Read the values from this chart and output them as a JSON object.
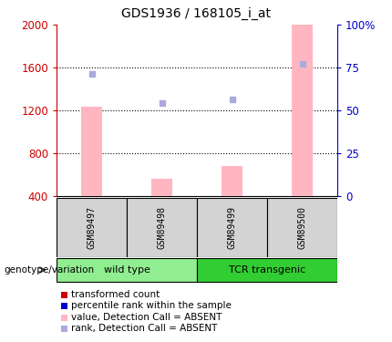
{
  "title": "GDS1936 / 168105_i_at",
  "samples": [
    "GSM89497",
    "GSM89498",
    "GSM89499",
    "GSM89500"
  ],
  "bar_values": [
    1230,
    560,
    680,
    2000
  ],
  "bar_color_absent": "#FFB6C1",
  "dot_values": [
    1540,
    1270,
    1300,
    1630
  ],
  "dot_color_absent": "#AAAADD",
  "ylim_left": [
    400,
    2000
  ],
  "ylim_right": [
    0,
    100
  ],
  "yticks_left": [
    400,
    800,
    1200,
    1600,
    2000
  ],
  "yticks_right": [
    0,
    25,
    50,
    75,
    100
  ],
  "ytick_labels_right": [
    "0",
    "25",
    "50",
    "75",
    "100%"
  ],
  "left_axis_color": "#CC0000",
  "right_axis_color": "#0000CC",
  "sample_box_color": "#D3D3D3",
  "group_box_color_wt": "#90EE90",
  "group_box_color_tcr": "#32CD32",
  "legend_items": [
    {
      "label": "transformed count",
      "color": "#CC0000"
    },
    {
      "label": "percentile rank within the sample",
      "color": "#0000CC"
    },
    {
      "label": "value, Detection Call = ABSENT",
      "color": "#FFB6C1"
    },
    {
      "label": "rank, Detection Call = ABSENT",
      "color": "#AAAADD"
    }
  ]
}
